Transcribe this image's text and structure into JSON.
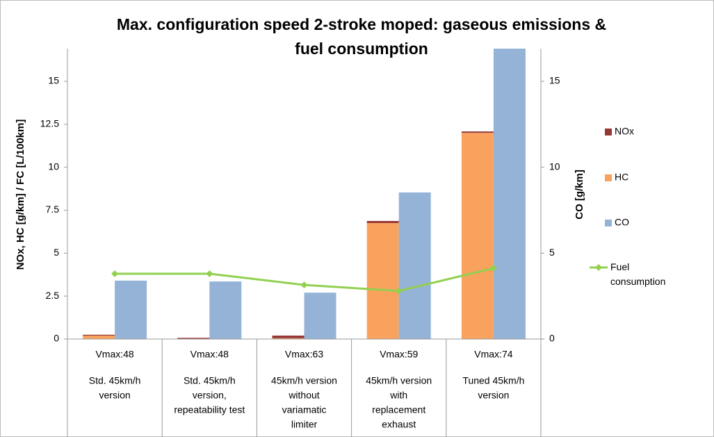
{
  "chart_data": {
    "type": "bar",
    "title": [
      "Max. configuration speed 2-stroke moped: gaseous emissions &",
      "fuel consumption"
    ],
    "ylabel": "NOx, HC [g/km] / FC [L/100km]",
    "y2label": "CO [g/km]",
    "categories": [
      [
        "Vmax:48",
        "Std. 45km/h",
        "version"
      ],
      [
        "Vmax:48",
        "Std. 45km/h",
        "version,",
        "repeatability test"
      ],
      [
        "Vmax:63",
        "45km/h version",
        "without",
        "variamatic",
        "limiter"
      ],
      [
        "Vmax:59",
        "45km/h version",
        "with",
        "replacement",
        "exhaust"
      ],
      [
        "Vmax:74",
        "Tuned 45km/h",
        "version"
      ]
    ],
    "series": [
      {
        "name": "NOx",
        "color": "#953735",
        "stack": "a",
        "values": [
          0.05,
          0.05,
          0.15,
          0.12,
          0.08
        ]
      },
      {
        "name": "HC",
        "color": "#f9a25e",
        "stack": "a",
        "values": [
          0.2,
          0.02,
          0.05,
          6.75,
          12.0
        ]
      },
      {
        "name": "CO",
        "color": "#95b3d7",
        "axis": "y2",
        "values": [
          3.4,
          3.35,
          2.7,
          8.53,
          17
        ]
      },
      {
        "name": "Fuel consumption",
        "color": "#92d050",
        "type": "line",
        "values": [
          3.8,
          3.8,
          3.15,
          2.8,
          4.12
        ]
      }
    ],
    "ylim": [
      0,
      16.9
    ],
    "yticks": [
      0,
      2.5,
      5,
      7.5,
      10,
      12.5,
      15
    ],
    "y2lim": [
      0,
      16.9
    ],
    "y2ticks": [
      0,
      5,
      10,
      15
    ],
    "legend": "right"
  }
}
